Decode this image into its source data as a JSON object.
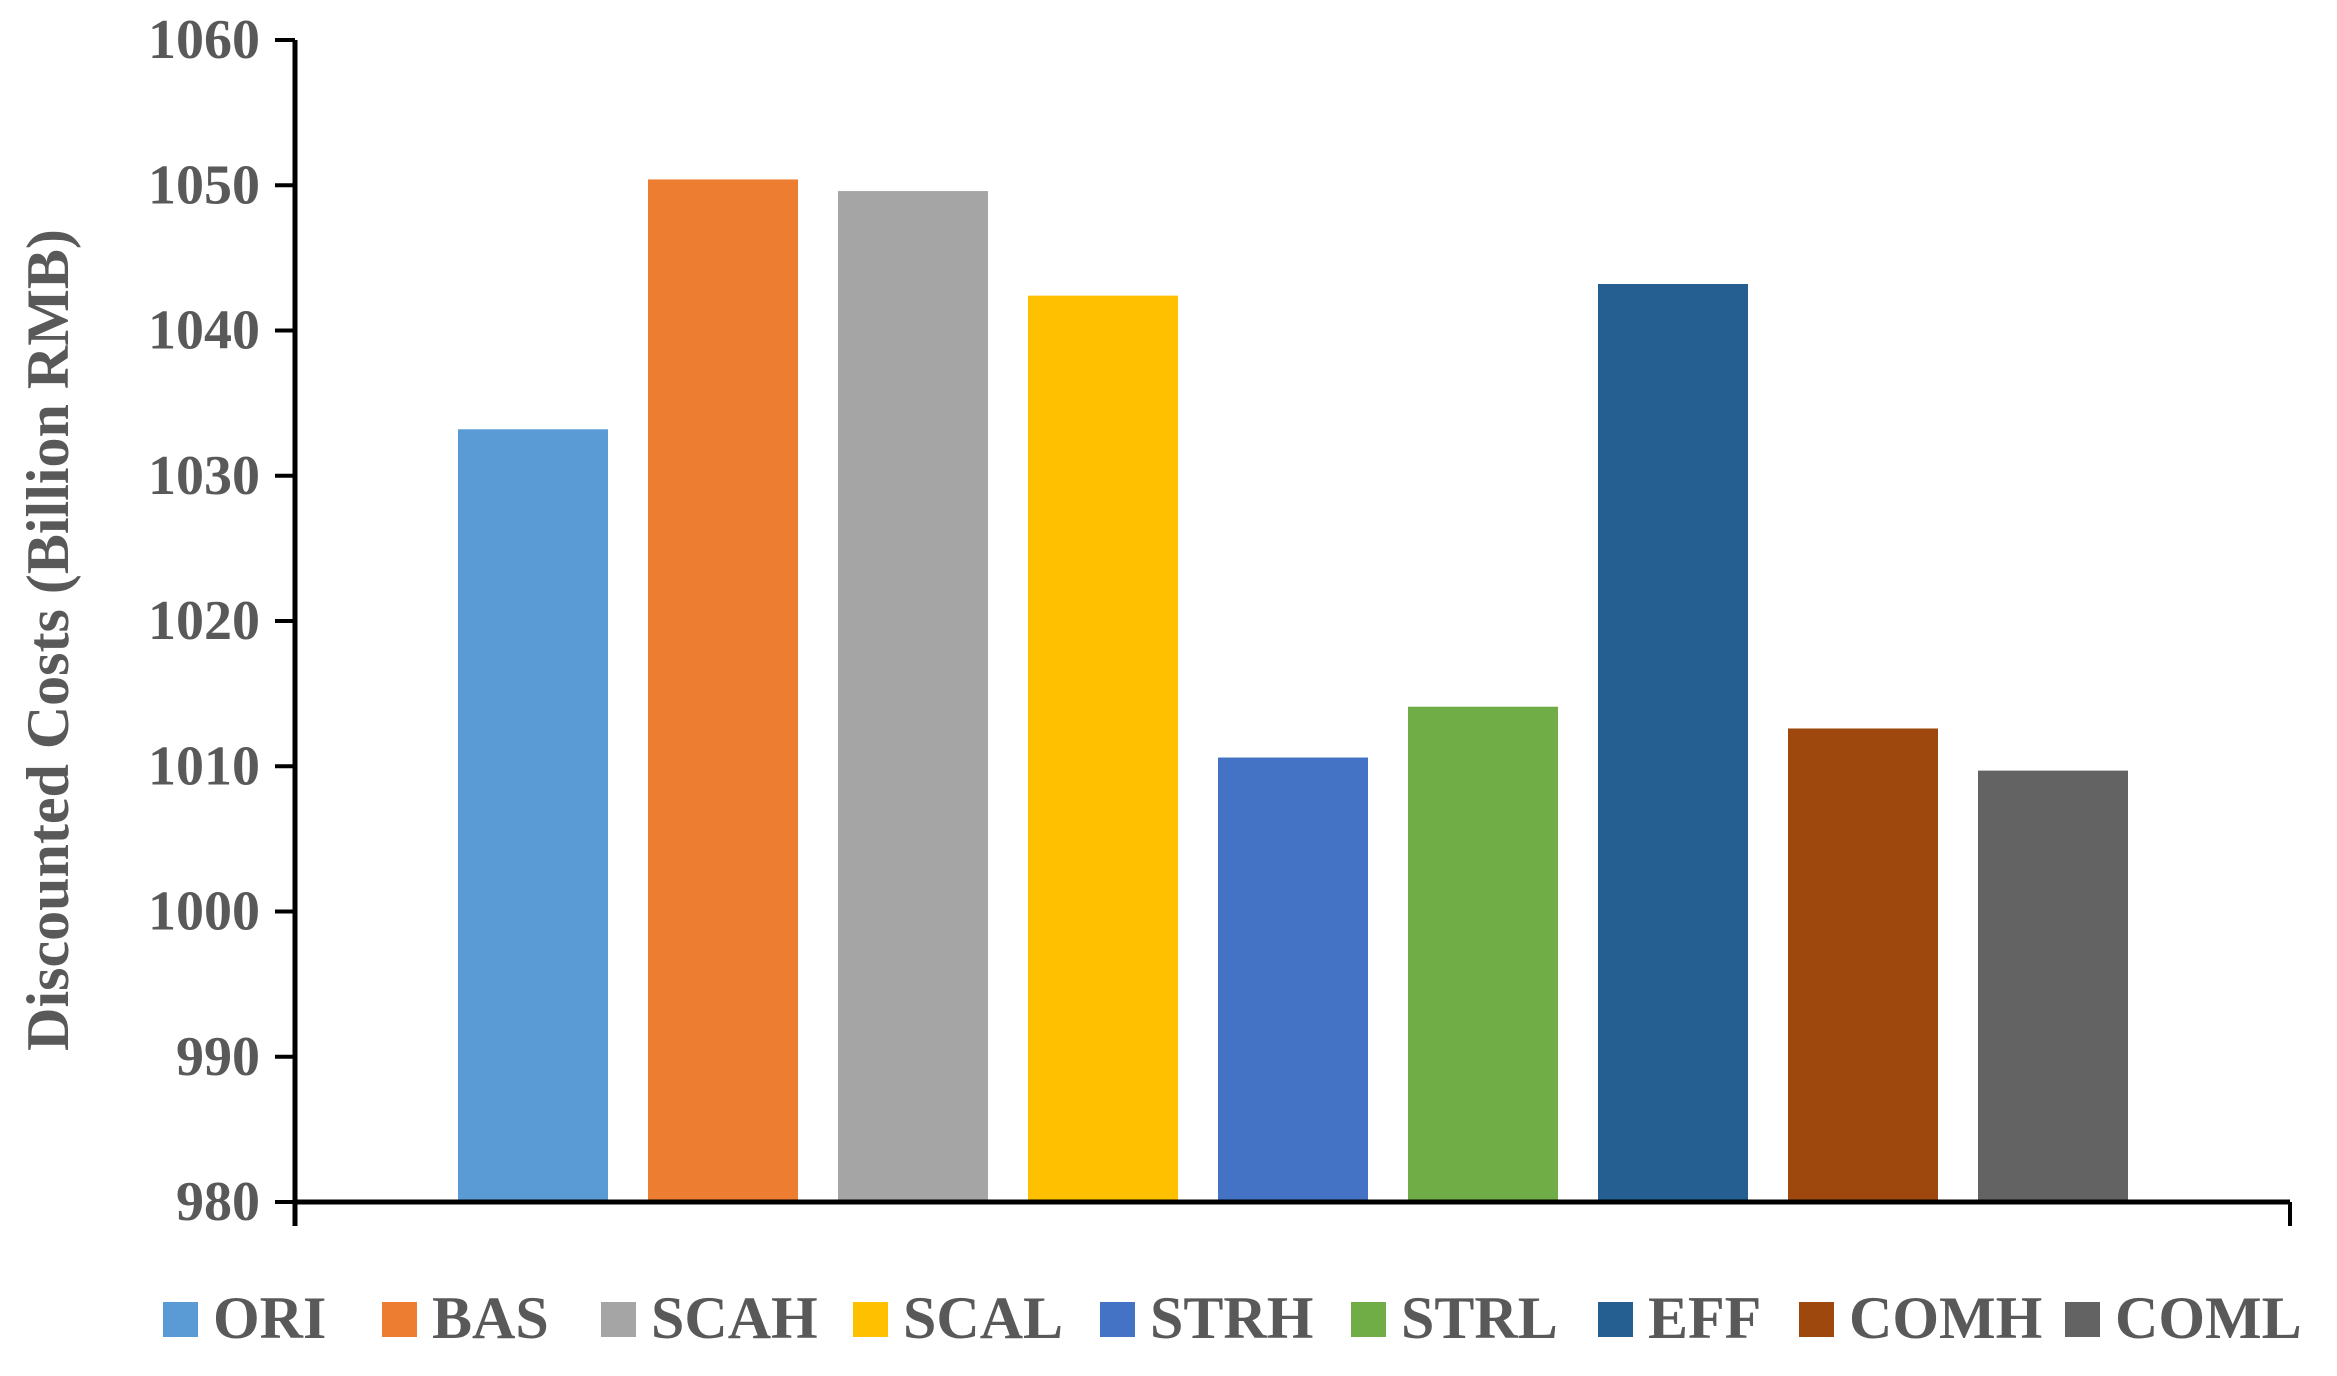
{
  "chart_data": {
    "type": "bar",
    "ylabel": "Discounted Costs (Billion RMB)",
    "xlabel": "",
    "ylim": [
      980,
      1060
    ],
    "yticks": [
      980,
      990,
      1000,
      1010,
      1020,
      1030,
      1040,
      1050,
      1060
    ],
    "grid": false,
    "legend_position": "bottom",
    "series": [
      {
        "name": "ORI",
        "value": 1033.2,
        "color": "#5B9BD5"
      },
      {
        "name": "BAS",
        "value": 1050.4,
        "color": "#ED7D31"
      },
      {
        "name": "SCAH",
        "value": 1049.6,
        "color": "#A5A5A5"
      },
      {
        "name": "SCAL",
        "value": 1042.4,
        "color": "#FFC000"
      },
      {
        "name": "STRH",
        "value": 1010.6,
        "color": "#4472C4"
      },
      {
        "name": "STRL",
        "value": 1014.1,
        "color": "#70AD47"
      },
      {
        "name": "EFF",
        "value": 1043.2,
        "color": "#255E91"
      },
      {
        "name": "COMH",
        "value": 1012.6,
        "color": "#9E480E"
      },
      {
        "name": "COML",
        "value": 1009.7,
        "color": "#636363"
      }
    ]
  }
}
